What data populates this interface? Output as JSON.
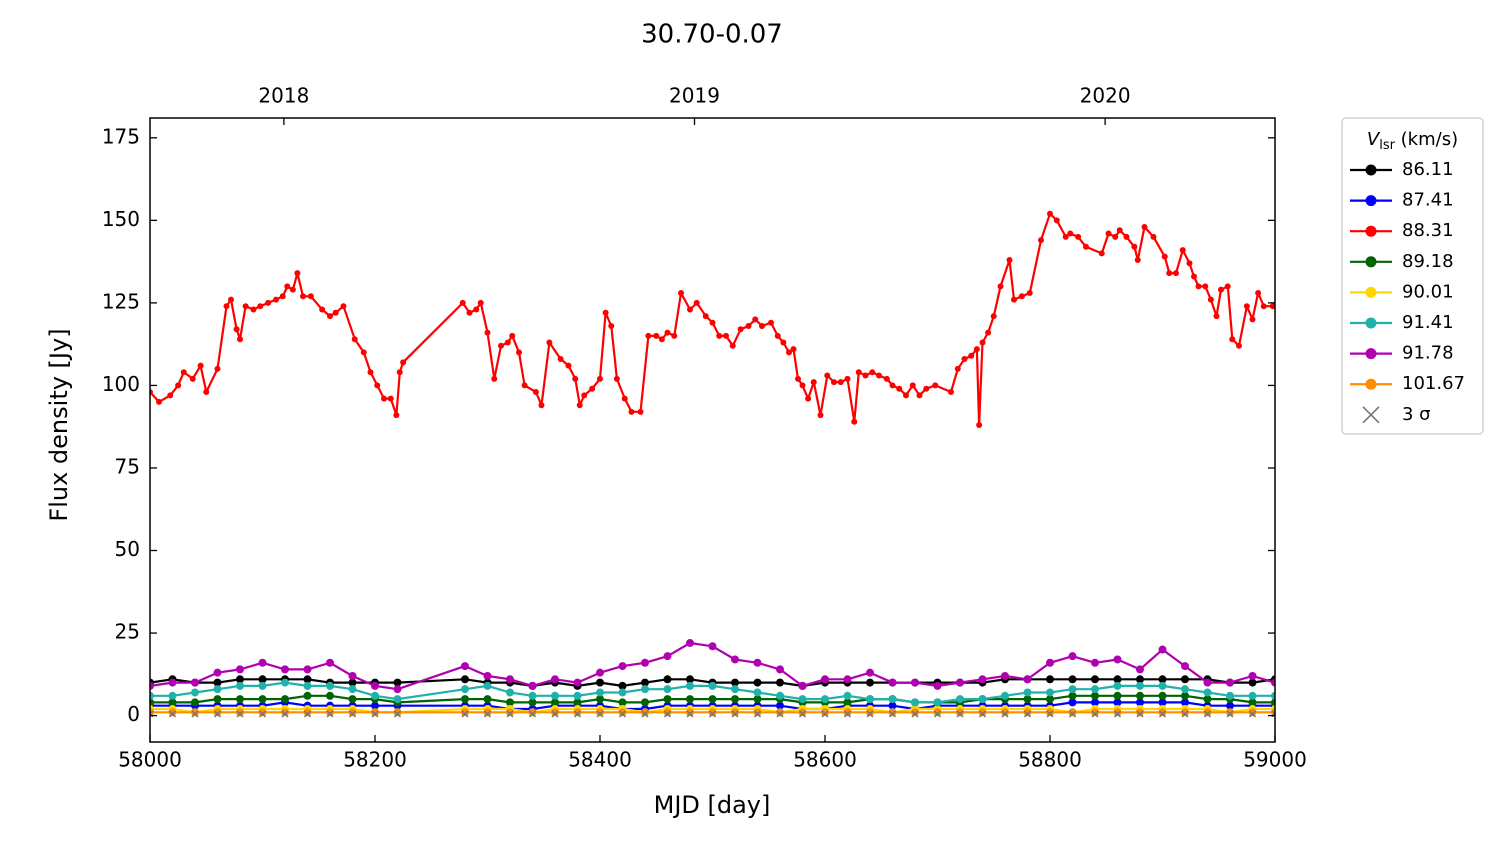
{
  "chart_data": {
    "type": "line",
    "title": "30.70-0.07",
    "xlabel": "MJD [day]",
    "ylabel": "Flux density [Jy]",
    "xlim": [
      58000,
      59000
    ],
    "xticks": [
      58000,
      58200,
      58400,
      58600,
      58800,
      59000
    ],
    "x2ticks": [
      {
        "value": 58119,
        "label": "2018"
      },
      {
        "value": 58484,
        "label": "2019"
      },
      {
        "value": 58849,
        "label": "2020"
      }
    ],
    "ylim": [
      -8,
      181
    ],
    "yticks": [
      0,
      25,
      50,
      75,
      100,
      125,
      150,
      175
    ],
    "tick_direction": "in",
    "legend_title": [
      "V",
      "lsr",
      " (km/s)"
    ],
    "legend_position": "outside right",
    "x": [
      58000,
      58020,
      58040,
      58060,
      58080,
      58100,
      58120,
      58140,
      58160,
      58180,
      58200,
      58220,
      58280,
      58300,
      58320,
      58340,
      58360,
      58380,
      58400,
      58420,
      58440,
      58460,
      58480,
      58500,
      58520,
      58540,
      58560,
      58580,
      58600,
      58620,
      58640,
      58660,
      58680,
      58700,
      58720,
      58740,
      58760,
      58780,
      58800,
      58820,
      58840,
      58860,
      58880,
      58900,
      58920,
      58940,
      58960,
      58980,
      59000
    ],
    "series": [
      {
        "name": "86.11",
        "color": "#000000",
        "marker": "o",
        "values": [
          10,
          11,
          10,
          10,
          11,
          11,
          11,
          11,
          10,
          10,
          10,
          10,
          11,
          10,
          10,
          9,
          10,
          9,
          10,
          9,
          10,
          11,
          11,
          10,
          10,
          10,
          10,
          9,
          10,
          10,
          10,
          10,
          10,
          10,
          10,
          10,
          11,
          11,
          11,
          11,
          11,
          11,
          11,
          11,
          11,
          11,
          10,
          10,
          11
        ]
      },
      {
        "name": "87.41",
        "color": "#0000ff",
        "marker": "o",
        "values": [
          3,
          3,
          3,
          3,
          3,
          3,
          4,
          3,
          3,
          3,
          3,
          3,
          3,
          3,
          2,
          2,
          3,
          3,
          3,
          2,
          2,
          3,
          3,
          3,
          3,
          3,
          3,
          2,
          2,
          3,
          3,
          3,
          2,
          3,
          3,
          3,
          3,
          3,
          3,
          4,
          4,
          4,
          4,
          4,
          4,
          3,
          3,
          3,
          3
        ]
      },
      {
        "name": "88.31",
        "color": "#ff0000",
        "marker": "o",
        "marker_size": "small",
        "x": [
          58000,
          58008,
          58018,
          58025,
          58030,
          58038,
          58045,
          58050,
          58060,
          58068,
          58072,
          58077,
          58080,
          58085,
          58092,
          58098,
          58105,
          58112,
          58118,
          58122,
          58127,
          58131,
          58136,
          58143,
          58153,
          58160,
          58165,
          58172,
          58182,
          58190,
          58196,
          58202,
          58208,
          58214,
          58219,
          58222,
          58225,
          58278,
          58284,
          58290,
          58294,
          58300,
          58306,
          58312,
          58318,
          58322,
          58328,
          58333,
          58343,
          58348,
          58355,
          58365,
          58372,
          58378,
          58382,
          58386,
          58393,
          58400,
          58405,
          58410,
          58415,
          58422,
          58428,
          58436,
          58443,
          58450,
          58455,
          58460,
          58466,
          58472,
          58480,
          58486,
          58494,
          58500,
          58506,
          58512,
          58518,
          58525,
          58532,
          58538,
          58544,
          58552,
          58558,
          58563,
          58568,
          58572,
          58576,
          58580,
          58585,
          58590,
          58596,
          58602,
          58608,
          58614,
          58620,
          58626,
          58630,
          58636,
          58642,
          58648,
          58655,
          58660,
          58666,
          58672,
          58678,
          58684,
          58690,
          58698,
          58712,
          58718,
          58724,
          58730,
          58735,
          58737,
          58740,
          58745,
          58750,
          58756,
          58764,
          58768,
          58775,
          58782,
          58792,
          58800,
          58806,
          58814,
          58818,
          58825,
          58832,
          58846,
          58852,
          58858,
          58862,
          58868,
          58875,
          58878,
          58884,
          58892,
          58902,
          58906,
          58912,
          58918,
          58924,
          58928,
          58932,
          58938,
          58943,
          58948,
          58952,
          58958,
          58962,
          58968,
          58975,
          58980,
          58985,
          58990,
          58998
        ],
        "values": [
          98,
          95,
          97,
          100,
          104,
          102,
          106,
          98,
          105,
          124,
          126,
          117,
          114,
          124,
          123,
          124,
          125,
          126,
          127,
          130,
          129,
          134,
          127,
          127,
          123,
          121,
          122,
          124,
          114,
          110,
          104,
          100,
          96,
          96,
          91,
          104,
          107,
          125,
          122,
          123,
          125,
          116,
          102,
          112,
          113,
          115,
          110,
          100,
          98,
          94,
          113,
          108,
          106,
          102,
          94,
          97,
          99,
          102,
          122,
          118,
          102,
          96,
          92,
          92,
          115,
          115,
          114,
          116,
          115,
          128,
          123,
          125,
          121,
          119,
          115,
          115,
          112,
          117,
          118,
          120,
          118,
          119,
          115,
          113,
          110,
          111,
          102,
          100,
          96,
          101,
          91,
          103,
          101,
          101,
          102,
          89,
          104,
          103,
          104,
          103,
          102,
          100,
          99,
          97,
          100,
          97,
          99,
          100,
          98,
          105,
          108,
          109,
          111,
          88,
          113,
          116,
          121,
          130,
          138,
          126,
          127,
          128,
          144,
          152,
          150,
          145,
          146,
          145,
          142,
          140,
          146,
          145,
          147,
          145,
          142,
          138,
          148,
          145,
          139,
          134,
          134,
          141,
          137,
          133,
          130,
          130,
          126,
          121,
          129,
          130,
          114,
          112,
          124,
          120,
          128,
          124,
          124
        ]
      },
      {
        "name": "89.18",
        "color": "#006400",
        "marker": "o",
        "values": [
          4,
          4,
          4,
          5,
          5,
          5,
          5,
          6,
          6,
          5,
          5,
          4,
          5,
          5,
          4,
          4,
          4,
          4,
          5,
          4,
          4,
          5,
          5,
          5,
          5,
          5,
          5,
          4,
          4,
          4,
          5,
          5,
          4,
          4,
          4,
          5,
          5,
          5,
          5,
          6,
          6,
          6,
          6,
          6,
          6,
          5,
          5,
          4,
          4
        ]
      },
      {
        "name": "90.01",
        "color": "#ffd700",
        "marker": "o",
        "values": [
          2,
          2,
          1,
          2,
          2,
          2,
          2,
          2,
          2,
          2,
          1,
          1,
          2,
          2,
          2,
          1,
          2,
          2,
          2,
          2,
          1,
          2,
          2,
          2,
          2,
          2,
          1,
          2,
          2,
          2,
          2,
          1,
          2,
          2,
          2,
          2,
          2,
          2,
          2,
          1,
          2,
          2,
          2,
          2,
          2,
          2,
          1,
          2,
          2
        ]
      },
      {
        "name": "91.41",
        "color": "#20b2aa",
        "marker": "o",
        "values": [
          6,
          6,
          7,
          8,
          9,
          9,
          10,
          9,
          9,
          8,
          6,
          5,
          8,
          9,
          7,
          6,
          6,
          6,
          7,
          7,
          8,
          8,
          9,
          9,
          8,
          7,
          6,
          5,
          5,
          6,
          5,
          5,
          4,
          4,
          5,
          5,
          6,
          7,
          7,
          8,
          8,
          9,
          9,
          9,
          8,
          7,
          6,
          6,
          6
        ]
      },
      {
        "name": "91.78",
        "color": "#b000b0",
        "marker": "o",
        "values": [
          9,
          10,
          10,
          13,
          14,
          16,
          14,
          14,
          16,
          12,
          9,
          8,
          15,
          12,
          11,
          9,
          11,
          10,
          13,
          15,
          16,
          18,
          22,
          21,
          17,
          16,
          14,
          9,
          11,
          11,
          13,
          10,
          10,
          9,
          10,
          11,
          12,
          11,
          16,
          18,
          16,
          17,
          14,
          20,
          15,
          10,
          10,
          12,
          10
        ]
      },
      {
        "name": "101.67",
        "color": "#ff8c00",
        "marker": "o",
        "values": [
          1,
          1,
          1,
          1,
          1,
          1,
          1,
          1,
          1,
          1,
          1,
          1,
          1,
          1,
          1,
          1,
          1,
          1,
          1,
          1,
          1,
          1,
          1,
          1,
          1,
          1,
          1,
          1,
          1,
          1,
          1,
          1,
          1,
          1,
          1,
          1,
          1,
          1,
          1,
          1,
          1,
          1,
          1,
          1,
          1,
          1,
          1,
          1,
          1
        ]
      },
      {
        "name": "3 σ",
        "color": "#777777",
        "marker": "x",
        "line": false,
        "values": [
          0.5,
          0.5,
          0.5,
          0.5,
          0.5,
          0.5,
          0.5,
          0.5,
          0.5,
          0.5,
          0.5,
          0.5,
          0.5,
          0.5,
          0.5,
          0.5,
          0.5,
          0.5,
          0.5,
          0.5,
          0.5,
          0.5,
          0.5,
          0.5,
          0.5,
          0.5,
          0.5,
          0.5,
          0.5,
          0.5,
          0.5,
          0.5,
          0.5,
          0.5,
          0.5,
          0.5,
          0.5,
          0.5,
          0.5,
          0.5,
          0.5,
          0.5,
          0.5,
          0.5,
          0.5,
          0.5,
          0.5,
          0.5,
          0.5
        ]
      }
    ]
  }
}
